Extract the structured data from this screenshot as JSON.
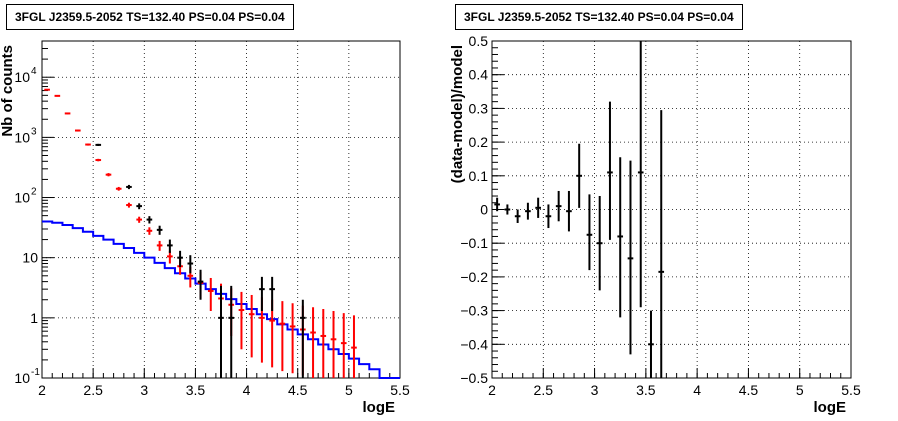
{
  "chart_data": [
    {
      "type": "scatter",
      "title": "3FGL J2359.5-2052 TS=132.40 PS=0.04 PS=0.04",
      "xlabel": "logE",
      "ylabel": "Nb of counts",
      "xlim": [
        2,
        5.5
      ],
      "ylim": [
        0.1,
        40000
      ],
      "ylog": true,
      "grid": true,
      "x_ticks": [
        "2",
        "2.5",
        "3",
        "3.5",
        "4",
        "4.5",
        "5",
        "5.5"
      ],
      "y_ticks": [
        {
          "v": 0.1,
          "base": "10",
          "exp": "-1"
        },
        {
          "v": 1,
          "base": "1",
          "exp": ""
        },
        {
          "v": 10,
          "base": "10",
          "exp": ""
        },
        {
          "v": 100,
          "base": "10",
          "exp": "2"
        },
        {
          "v": 1000,
          "base": "10",
          "exp": "3"
        },
        {
          "v": 10000,
          "base": "10",
          "exp": "4"
        }
      ],
      "bin_width": 0.1,
      "series": [
        {
          "color": "#0000ff",
          "style": "step",
          "x": [
            2.05,
            2.15,
            2.25,
            2.35,
            2.45,
            2.55,
            2.65,
            2.75,
            2.85,
            2.95,
            3.05,
            3.15,
            3.25,
            3.35,
            3.45,
            3.55,
            3.65,
            3.75,
            3.85,
            3.95,
            4.05,
            4.15,
            4.25,
            4.35,
            4.45,
            4.55,
            4.65,
            4.75,
            4.85,
            4.95,
            5.05,
            5.15,
            5.25,
            5.35,
            5.45
          ],
          "y": [
            40,
            38,
            35,
            31,
            27,
            23,
            20,
            17,
            14.5,
            12,
            10,
            8.2,
            6.7,
            5.5,
            4.5,
            3.7,
            3.0,
            2.5,
            2.05,
            1.7,
            1.4,
            1.15,
            0.95,
            0.78,
            0.64,
            0.53,
            0.44,
            0.36,
            0.3,
            0.25,
            0.21,
            0.17,
            0.14,
            0.1,
            0.1
          ]
        },
        {
          "color": "#ff0000",
          "style": "errorbar",
          "x": [
            2.05,
            2.15,
            2.25,
            2.35,
            2.45,
            2.55,
            2.65,
            2.75,
            2.85,
            2.95,
            3.05,
            3.15,
            3.25,
            3.35,
            3.45,
            3.55,
            3.65,
            3.75,
            3.85,
            3.95,
            4.05,
            4.15,
            4.25,
            4.35,
            4.45,
            4.55,
            4.65,
            4.75,
            4.85,
            4.95,
            5.05
          ],
          "y": [
            6200,
            4900,
            2500,
            1300,
            760,
            420,
            240,
            140,
            75,
            43,
            28,
            16,
            10.5,
            7.2,
            5.0,
            3.8,
            2.8,
            2.1,
            1.65,
            1.35,
            1.15,
            1.0,
            0.9,
            0.8,
            0.72,
            0.64,
            0.57,
            0.5,
            0.44,
            0.38,
            0.32
          ],
          "ylo": [
            6050,
            4770,
            2420,
            1250,
            730,
            400,
            225,
            130,
            68,
            38,
            24,
            13,
            8,
            5.2,
            3.2,
            2.1,
            1.3,
            0.8,
            0.5,
            0.3,
            0.22,
            0.18,
            0.15,
            0.13,
            0.12,
            0.11,
            0.1,
            0.1,
            0.1,
            0.1,
            0.1
          ],
          "yhi": [
            6350,
            5030,
            2580,
            1350,
            790,
            440,
            255,
            150,
            82,
            48,
            32,
            19,
            13,
            9.5,
            7.0,
            5.8,
            4.6,
            3.7,
            3.1,
            2.7,
            2.4,
            2.2,
            2.0,
            1.9,
            1.75,
            1.6,
            1.5,
            1.4,
            1.3,
            1.2,
            1.1
          ]
        },
        {
          "color": "#000000",
          "style": "errorbar",
          "x": [
            2.55,
            2.85,
            2.95,
            3.05,
            3.15,
            3.25,
            3.35,
            3.45,
            3.55,
            3.75,
            3.85,
            4.15,
            4.25,
            4.55
          ],
          "y": [
            750,
            150,
            72,
            43,
            29,
            16,
            10,
            8,
            4,
            1,
            1,
            3,
            3,
            1
          ],
          "ylo": [
            720,
            138,
            64,
            37,
            24,
            12,
            7,
            5.5,
            2.0,
            0.1,
            0.1,
            1.3,
            1.3,
            0.1
          ],
          "yhi": [
            780,
            162,
            80,
            49,
            34,
            20,
            13,
            11,
            6.3,
            3.4,
            3.4,
            4.8,
            4.8,
            2.0
          ]
        }
      ]
    },
    {
      "type": "scatter",
      "title": "3FGL J2359.5-2052 TS=132.40 PS=0.04 PS=0.04",
      "xlabel": "logE",
      "ylabel": "(data-model)/model",
      "xlim": [
        2,
        5.5
      ],
      "ylim": [
        -0.5,
        0.5
      ],
      "grid": true,
      "x_ticks": [
        "2",
        "2.5",
        "3",
        "3.5",
        "4",
        "4.5",
        "5",
        "5.5"
      ],
      "y_ticks": [
        "-0.5",
        "-0.4",
        "-0.3",
        "-0.2",
        "-0.1",
        "0",
        "0.1",
        "0.2",
        "0.3",
        "0.4",
        "0.5"
      ],
      "bin_width": 0.1,
      "series": [
        {
          "color": "#000000",
          "style": "errorbar",
          "x": [
            2.05,
            2.15,
            2.25,
            2.35,
            2.45,
            2.55,
            2.65,
            2.75,
            2.85,
            2.95,
            3.05,
            3.15,
            3.25,
            3.35,
            3.45,
            3.55,
            3.65
          ],
          "y": [
            0.015,
            0.0,
            -0.02,
            -0.005,
            0.005,
            -0.02,
            0.01,
            -0.005,
            0.1,
            -0.075,
            -0.1,
            0.11,
            -0.08,
            -0.145,
            0.11,
            -0.4,
            -0.185
          ],
          "ylo": [
            -0.005,
            -0.015,
            -0.04,
            -0.03,
            -0.025,
            -0.055,
            -0.035,
            -0.065,
            0.005,
            -0.18,
            -0.24,
            -0.09,
            -0.32,
            -0.43,
            -0.29,
            -0.5,
            -0.5
          ],
          "yhi": [
            0.035,
            0.015,
            0.0,
            0.02,
            0.035,
            0.015,
            0.055,
            0.055,
            0.195,
            0.045,
            0.04,
            0.32,
            0.155,
            0.145,
            0.5,
            -0.3,
            0.295
          ]
        }
      ]
    }
  ]
}
